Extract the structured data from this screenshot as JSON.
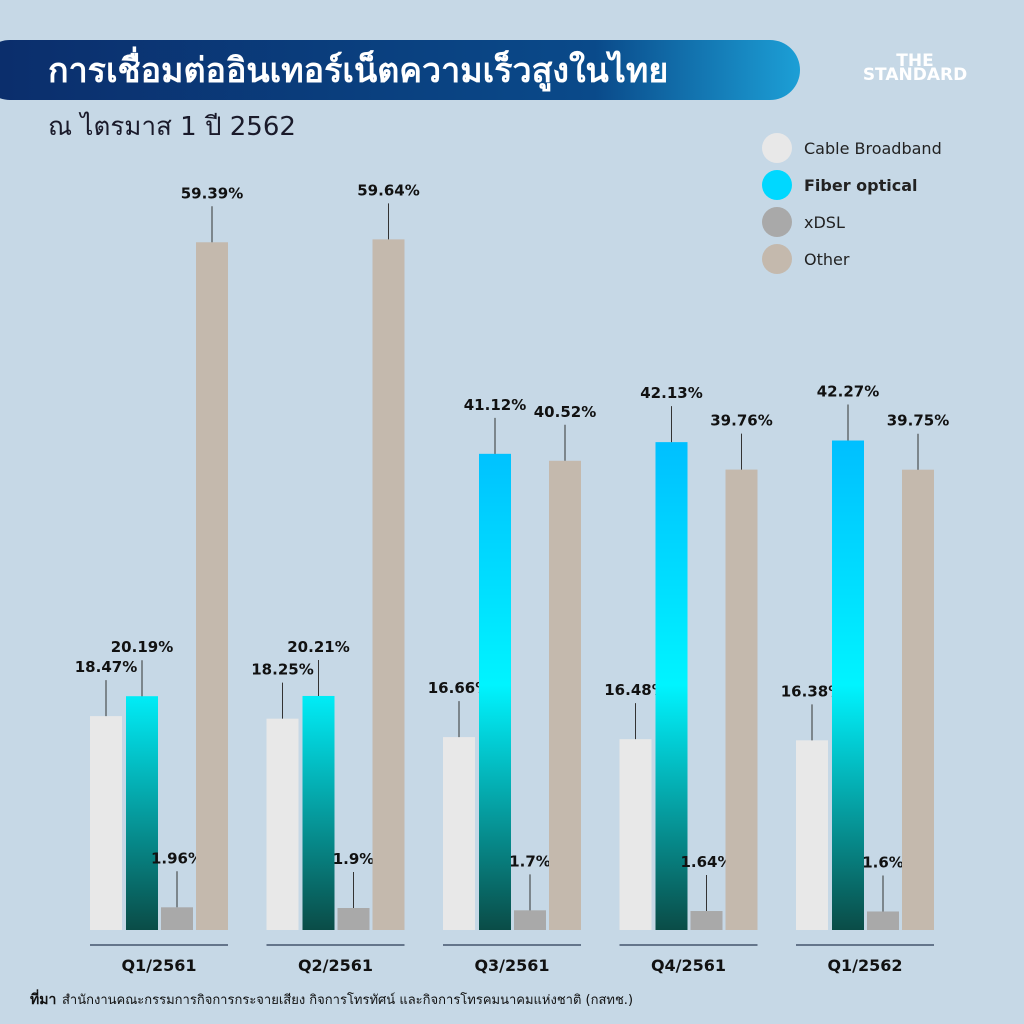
{
  "chart_data": {
    "type": "bar",
    "title": "การเชื่อมต่ออินเทอร์เน็ตความเร็วสูงในไทย",
    "subtitle": "ณ ไตรมาส 1 ปี 2562",
    "brand": [
      "THE",
      "STANDARD"
    ],
    "source_label": "ที่มา",
    "source": "สำนักงานคณะกรรมการกิจการกระจายเสียง กิจการโทรทัศน์ และกิจการโทรคมนาคมแห่งชาติ (กสทช.)",
    "categories": [
      "Q1/2561",
      "Q2/2561",
      "Q3/2561",
      "Q4/2561",
      "Q1/2562"
    ],
    "series": [
      {
        "name": "Cable Broadband",
        "color": "#e8e8e8",
        "values": [
          18.47,
          18.25,
          16.66,
          16.48,
          16.38
        ],
        "value_labels": [
          "18.47%",
          "18.25%",
          "16.66%",
          "16.48%",
          "16.38%"
        ]
      },
      {
        "name": "Fiber optical",
        "color": "#00d8ff",
        "values": [
          20.19,
          20.21,
          41.12,
          42.13,
          42.27
        ],
        "value_labels": [
          "20.19%",
          "20.21%",
          "41.12%",
          "42.13%",
          "42.27%"
        ]
      },
      {
        "name": "xDSL",
        "color": "#a9a9a9",
        "values": [
          1.96,
          1.9,
          1.7,
          1.64,
          1.6
        ],
        "value_labels": [
          "1.96%",
          "1.9%",
          "1.7%",
          "1.64%",
          "1.6%"
        ]
      },
      {
        "name": "Other",
        "color": "#c4b9ad",
        "values": [
          59.39,
          59.64,
          40.52,
          39.76,
          39.75
        ],
        "value_labels": [
          "59.39%",
          "59.64%",
          "40.52%",
          "39.76%",
          "39.75%"
        ]
      }
    ]
  }
}
